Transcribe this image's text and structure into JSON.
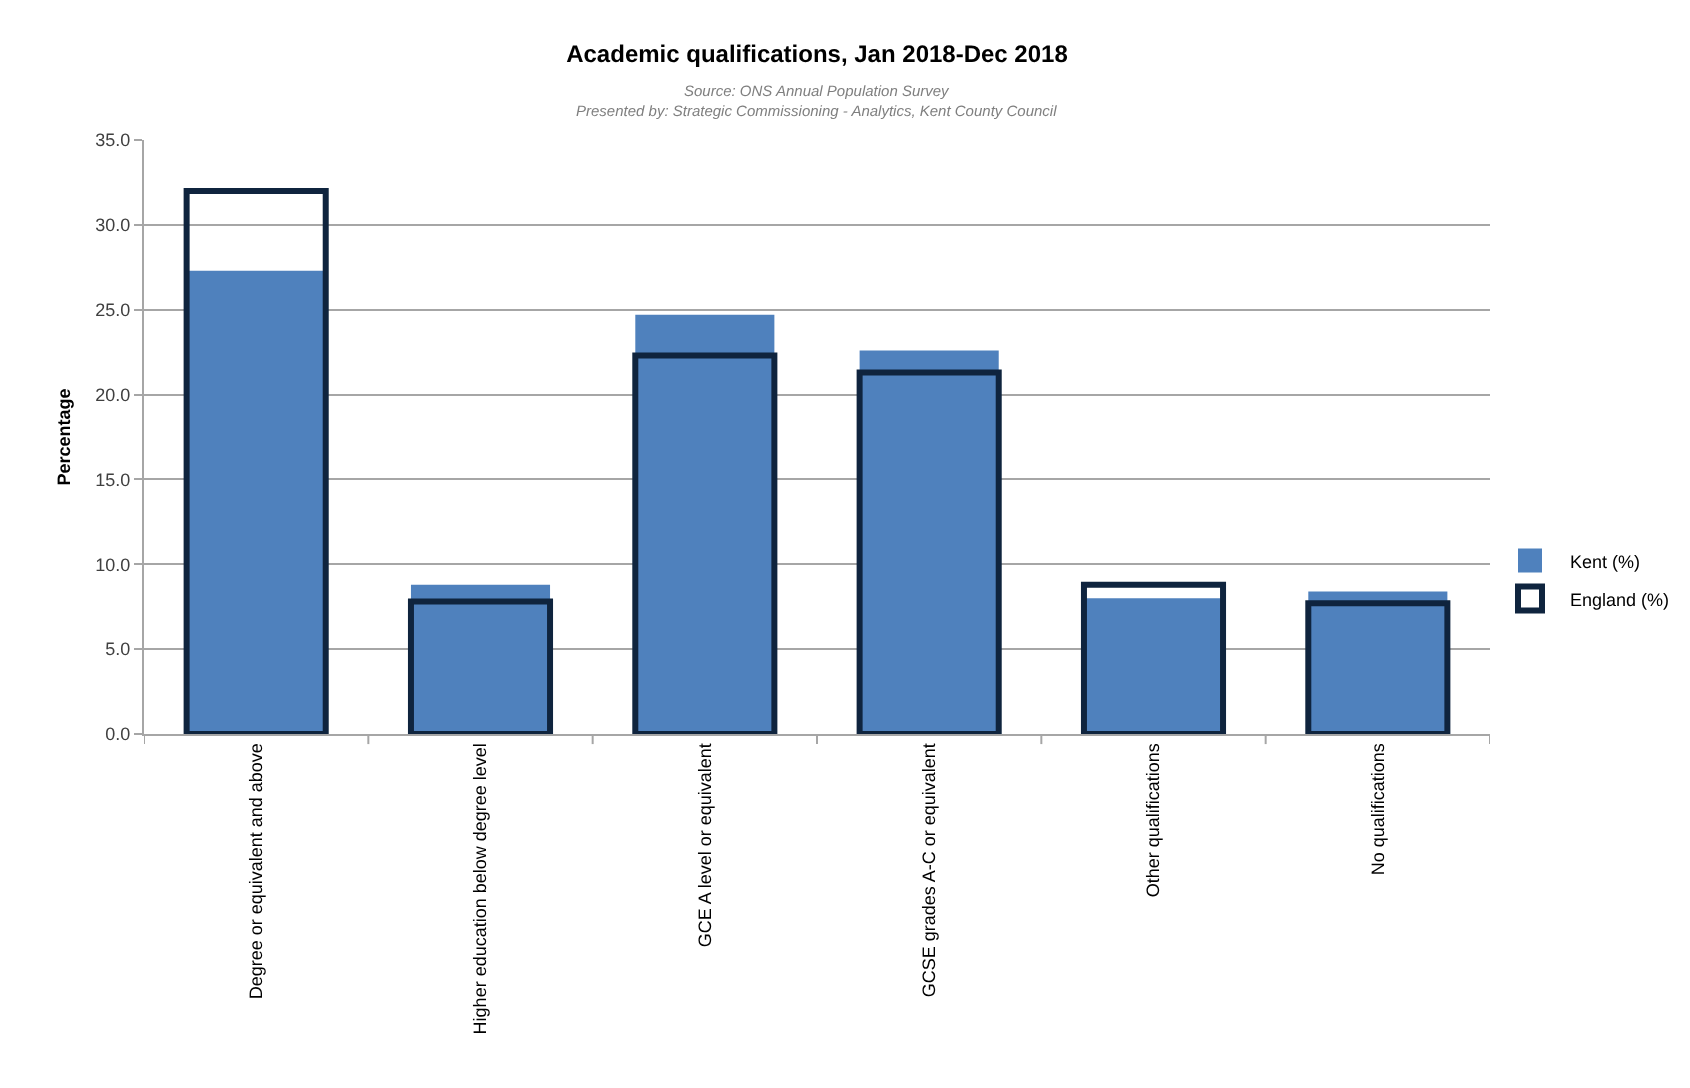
{
  "chart_data": {
    "type": "bar",
    "title": "Academic qualifications, Jan 2018-Dec 2018",
    "annotations": [
      "Source: ONS Annual Population Survey",
      "Presented by: Strategic Commissioning - Analytics, Kent County Council"
    ],
    "ylabel": "Percentage",
    "categories": [
      "Degree or equivalent and above",
      "Higher education below degree level",
      "GCE A level or equivalent",
      "GCSE grades A-C or equivalent",
      "Other qualifications",
      "No qualifications"
    ],
    "series": [
      {
        "name": "Kent (%)",
        "color": "#4f81bd",
        "values": [
          27.3,
          8.8,
          24.7,
          22.6,
          8.0,
          8.4
        ]
      },
      {
        "name": "England (%)",
        "color": "#0f243e",
        "values": [
          32.0,
          7.8,
          22.3,
          21.3,
          8.8,
          7.7
        ]
      }
    ],
    "ylim": [
      0,
      35
    ],
    "yticks": [
      {
        "value": 0,
        "label": "0.0"
      },
      {
        "value": 5,
        "label": "5.0"
      },
      {
        "value": 10,
        "label": "10.0"
      },
      {
        "value": 15,
        "label": "15.0"
      },
      {
        "value": 20,
        "label": "20.0"
      },
      {
        "value": 25,
        "label": "25.0"
      },
      {
        "value": 30,
        "label": "30.0"
      },
      {
        "value": 35,
        "label": "35.0"
      }
    ],
    "grid": "y",
    "legend": "right"
  }
}
